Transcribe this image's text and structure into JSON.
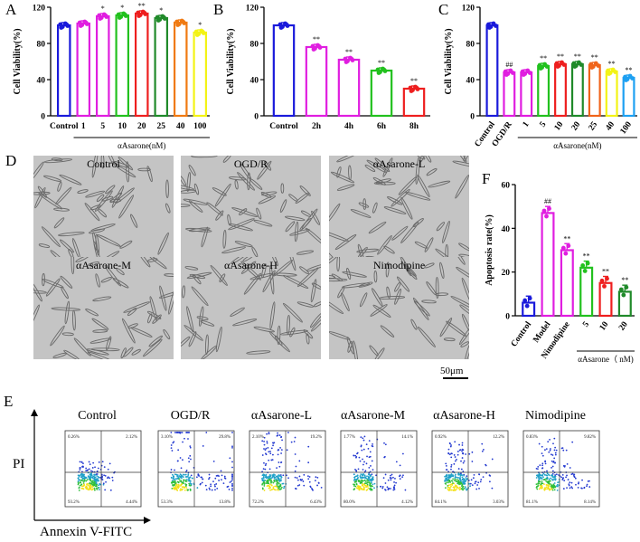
{
  "panel_letters": {
    "A": "A",
    "B": "B",
    "C": "C",
    "D": "D",
    "E": "E",
    "F": "F"
  },
  "colors": {
    "blue": "#1a1adb",
    "magenta": "#e01ee0",
    "orange": "#f07a12",
    "green": "#22c11e",
    "red": "#ee1f1f",
    "darkgreen": "#208a2a",
    "darkorange": "#f0641a",
    "yellow": "#f3f316",
    "skyblue": "#1ea0f2"
  },
  "charts": {
    "A": {
      "ylabel": "Cell Viability(%)",
      "ylim": [
        0,
        120
      ],
      "yticks": [
        "0",
        "40",
        "80",
        "120"
      ],
      "categories": [
        "Control",
        "1",
        "5",
        "10",
        "20",
        "25",
        "40",
        "100"
      ],
      "values": [
        100,
        102,
        110,
        111,
        113,
        108,
        103,
        92
      ],
      "stars": [
        "",
        "",
        "*",
        "*",
        "**",
        "*",
        "",
        "*"
      ],
      "bracket_label": "αAsarone(nM)"
    },
    "B": {
      "ylabel": "Cell Viability(%)",
      "ylim": [
        0,
        120
      ],
      "yticks": [
        "0",
        "40",
        "80",
        "120"
      ],
      "categories": [
        "Control",
        "2h",
        "4h",
        "6h",
        "8h"
      ],
      "values": [
        100,
        76,
        62,
        50,
        30
      ],
      "stars": [
        "",
        "**",
        "**",
        "**",
        "**"
      ]
    },
    "C": {
      "ylabel": "Cell Viability(%)",
      "ylim": [
        0,
        120
      ],
      "yticks": [
        "0",
        "40",
        "80",
        "120"
      ],
      "categories": [
        "Control",
        "OGD/R",
        "1",
        "5",
        "10",
        "20",
        "25",
        "40",
        "100"
      ],
      "values": [
        100,
        48,
        48,
        55,
        57,
        57,
        56,
        49,
        42
      ],
      "stars": [
        "",
        "##",
        "",
        "**",
        "**",
        "**",
        "**",
        "**",
        "**"
      ],
      "bracket_label": "αAsarone(nM)"
    },
    "F": {
      "ylabel": "Apoptosis rate(%)",
      "ylim": [
        0,
        60
      ],
      "yticks": [
        "0",
        "20",
        "40",
        "60"
      ],
      "categories": [
        "Control",
        "Model",
        "Nimodipine",
        "5",
        "10",
        "20"
      ],
      "values": [
        6,
        47,
        30,
        22,
        15,
        11
      ],
      "stars": [
        "",
        "##",
        "**",
        "**",
        "**",
        "**"
      ],
      "bracket_label": "αAsarone（ nM)"
    }
  },
  "micrographs": {
    "titles": [
      "Control",
      "OGD/R",
      "αAsarone-L",
      "αAsarone-M",
      "αAsarone-H",
      "Nimodipine"
    ],
    "scale_bar": "50μm"
  },
  "flow": {
    "titles": [
      "Control",
      "OGD/R",
      "αAsarone-L",
      "αAsarone-M",
      "αAsarone-H",
      "Nimodipine"
    ],
    "y_axis": "PI",
    "x_axis": "Annexin V-FITC",
    "quadrants": [
      {
        "ul": "0.26%",
        "ur": "2.12%",
        "ll": "93.2%",
        "lr": "4.44%"
      },
      {
        "ul": "3.10%",
        "ur": "29.8%",
        "ll": "53.3%",
        "lr": "13.8%"
      },
      {
        "ul": "2.10%",
        "ur": "19.2%",
        "ll": "72.2%",
        "lr": "6.43%"
      },
      {
        "ul": "1.77%",
        "ur": "14.1%",
        "ll": "80.0%",
        "lr": "4.12%"
      },
      {
        "ul": "0.92%",
        "ur": "12.2%",
        "ll": "84.1%",
        "lr": "3.03%"
      },
      {
        "ul": "0.83%",
        "ur": "9.82%",
        "ll": "81.1%",
        "lr": "8.14%"
      }
    ]
  },
  "chart_data": [
    {
      "type": "bar",
      "title": "A",
      "ylabel": "Cell Viability(%)",
      "xlabel": "αAsarone(nM)",
      "categories": [
        "Control",
        "1",
        "5",
        "10",
        "20",
        "25",
        "40",
        "100"
      ],
      "values": [
        100,
        102,
        110,
        111,
        113,
        108,
        103,
        92
      ],
      "ylim": [
        0,
        120
      ]
    },
    {
      "type": "bar",
      "title": "B",
      "ylabel": "Cell Viability(%)",
      "categories": [
        "Control",
        "2h",
        "4h",
        "6h",
        "8h"
      ],
      "values": [
        100,
        76,
        62,
        50,
        30
      ],
      "ylim": [
        0,
        120
      ]
    },
    {
      "type": "bar",
      "title": "C",
      "ylabel": "Cell Viability(%)",
      "xlabel": "αAsarone(nM)",
      "categories": [
        "Control",
        "OGD/R",
        "1",
        "5",
        "10",
        "20",
        "25",
        "40",
        "100"
      ],
      "values": [
        100,
        48,
        48,
        55,
        57,
        57,
        56,
        49,
        42
      ],
      "ylim": [
        0,
        120
      ]
    },
    {
      "type": "bar",
      "title": "F",
      "ylabel": "Apoptosis rate(%)",
      "xlabel": "αAsarone（ nM)",
      "categories": [
        "Control",
        "Model",
        "Nimodipine",
        "5",
        "10",
        "20"
      ],
      "values": [
        6,
        47,
        30,
        22,
        15,
        11
      ],
      "ylim": [
        0,
        60
      ]
    }
  ]
}
